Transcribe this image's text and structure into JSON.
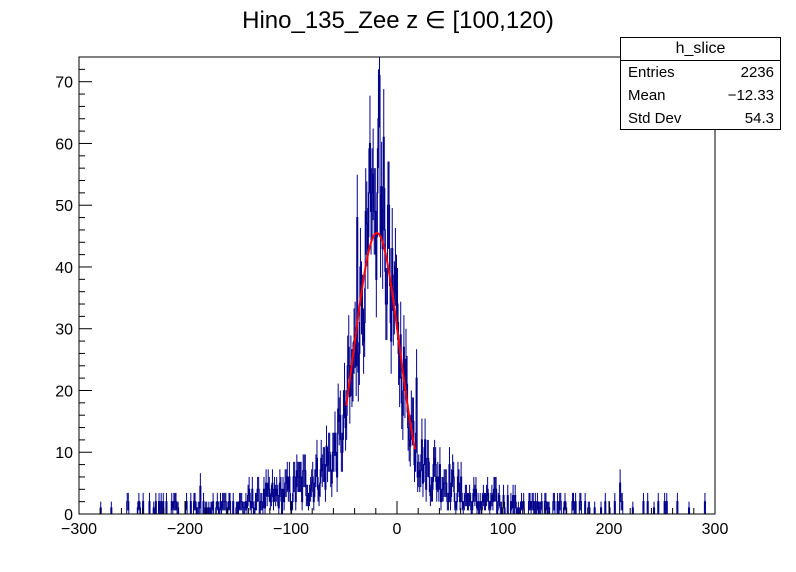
{
  "title": "Hino_135_Zee z  ∈ [100,120)",
  "stats": {
    "name": "h_slice",
    "rows": [
      {
        "label": "Entries",
        "value": "2236"
      },
      {
        "label": "Mean",
        "value": "−12.33"
      },
      {
        "label": "Std Dev",
        "value": "54.3"
      }
    ]
  },
  "colors": {
    "histogram": "#00008b",
    "fit": "#ff0000",
    "axis": "#000000"
  },
  "chart_data": {
    "type": "bar",
    "title": "Hino_135_Zee z  ∈ [100,120)",
    "xlabel": "",
    "ylabel": "",
    "xlim": [
      -300,
      300
    ],
    "ylim": [
      0,
      74
    ],
    "x_ticks": [
      -300,
      -200,
      -100,
      0,
      100,
      200,
      300
    ],
    "y_ticks": [
      0,
      10,
      20,
      30,
      40,
      50,
      60,
      70
    ],
    "x_tick_labels": [
      "−300",
      "−200",
      "−100",
      "0",
      "100",
      "200",
      "300"
    ],
    "y_tick_labels": [
      "0",
      "10",
      "20",
      "30",
      "40",
      "50",
      "60",
      "70"
    ],
    "grid": false,
    "legend": "none",
    "histogram": {
      "bin_width": 1,
      "entries": 2236,
      "mean": -12.33,
      "std_dev": 54.3,
      "profile": [
        [
          -300,
          0
        ],
        [
          -280,
          0.3
        ],
        [
          -240,
          0.5
        ],
        [
          -220,
          0.8
        ],
        [
          -200,
          1
        ],
        [
          -180,
          1
        ],
        [
          -160,
          1.2
        ],
        [
          -140,
          1.7
        ],
        [
          -120,
          2.5
        ],
        [
          -100,
          3.5
        ],
        [
          -90,
          4.5
        ],
        [
          -80,
          5.5
        ],
        [
          -70,
          7
        ],
        [
          -60,
          9.5
        ],
        [
          -50,
          14
        ],
        [
          -45,
          19
        ],
        [
          -40,
          25
        ],
        [
          -35,
          33
        ],
        [
          -30,
          39
        ],
        [
          -25,
          44
        ],
        [
          -20,
          46
        ],
        [
          -15,
          45
        ],
        [
          -10,
          42
        ],
        [
          -5,
          36
        ],
        [
          0,
          30
        ],
        [
          5,
          24
        ],
        [
          10,
          18
        ],
        [
          15,
          14
        ],
        [
          20,
          10
        ],
        [
          30,
          7
        ],
        [
          40,
          6
        ],
        [
          50,
          5
        ],
        [
          60,
          3
        ],
        [
          70,
          2.2
        ],
        [
          80,
          2
        ],
        [
          100,
          1.6
        ],
        [
          120,
          1.2
        ],
        [
          150,
          0.8
        ],
        [
          200,
          0.5
        ],
        [
          240,
          0.4
        ],
        [
          270,
          0.2
        ],
        [
          300,
          0
        ]
      ],
      "spikes": [
        {
          "x": -17,
          "y": 71
        },
        {
          "x": -18,
          "y": 64
        },
        {
          "x": -26,
          "y": 60
        },
        {
          "x": -13,
          "y": 61
        },
        {
          "x": -38,
          "y": 48
        },
        {
          "x": -8,
          "y": 50
        },
        {
          "x": -186,
          "y": 4.5
        },
        {
          "x": -95,
          "y": 7
        },
        {
          "x": 210,
          "y": 5
        },
        {
          "x": 18,
          "y": 22
        },
        {
          "x": -46,
          "y": 27
        }
      ]
    },
    "fit": {
      "type": "gaussian",
      "range": [
        -48,
        17
      ],
      "amplitude": 45.5,
      "mean": -19,
      "sigma": 21
    }
  }
}
